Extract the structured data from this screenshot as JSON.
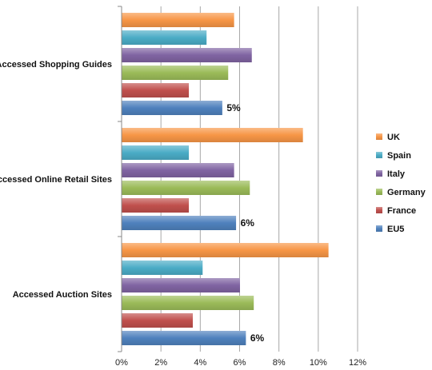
{
  "chart_data": {
    "type": "bar",
    "orientation": "horizontal",
    "categories": [
      "Accessed Shopping Guides",
      "Accessed Online Retail Sites",
      "Accessed Auction Sites"
    ],
    "series": [
      {
        "name": "UK",
        "color": "#F79646",
        "values": [
          5.7,
          9.2,
          10.5
        ]
      },
      {
        "name": "Spain",
        "color": "#4BACC6",
        "values": [
          4.3,
          3.4,
          4.1
        ]
      },
      {
        "name": "Italy",
        "color": "#8064A2",
        "values": [
          6.6,
          5.7,
          6.0
        ]
      },
      {
        "name": "Germany",
        "color": "#9BBB59",
        "values": [
          5.4,
          6.5,
          6.7
        ]
      },
      {
        "name": "France",
        "color": "#C0504D",
        "values": [
          3.4,
          3.4,
          3.6
        ]
      },
      {
        "name": "EU5",
        "color": "#4F81BD",
        "values": [
          5.1,
          5.8,
          6.3
        ]
      }
    ],
    "data_labels": {
      "series": "EU5",
      "labels": [
        "5%",
        "6%",
        "6%"
      ]
    },
    "xlim": [
      0,
      12
    ],
    "x_ticks": [
      "0%",
      "2%",
      "4%",
      "6%",
      "8%",
      "10%",
      "12%"
    ],
    "grid": true,
    "legend_position": "right"
  }
}
